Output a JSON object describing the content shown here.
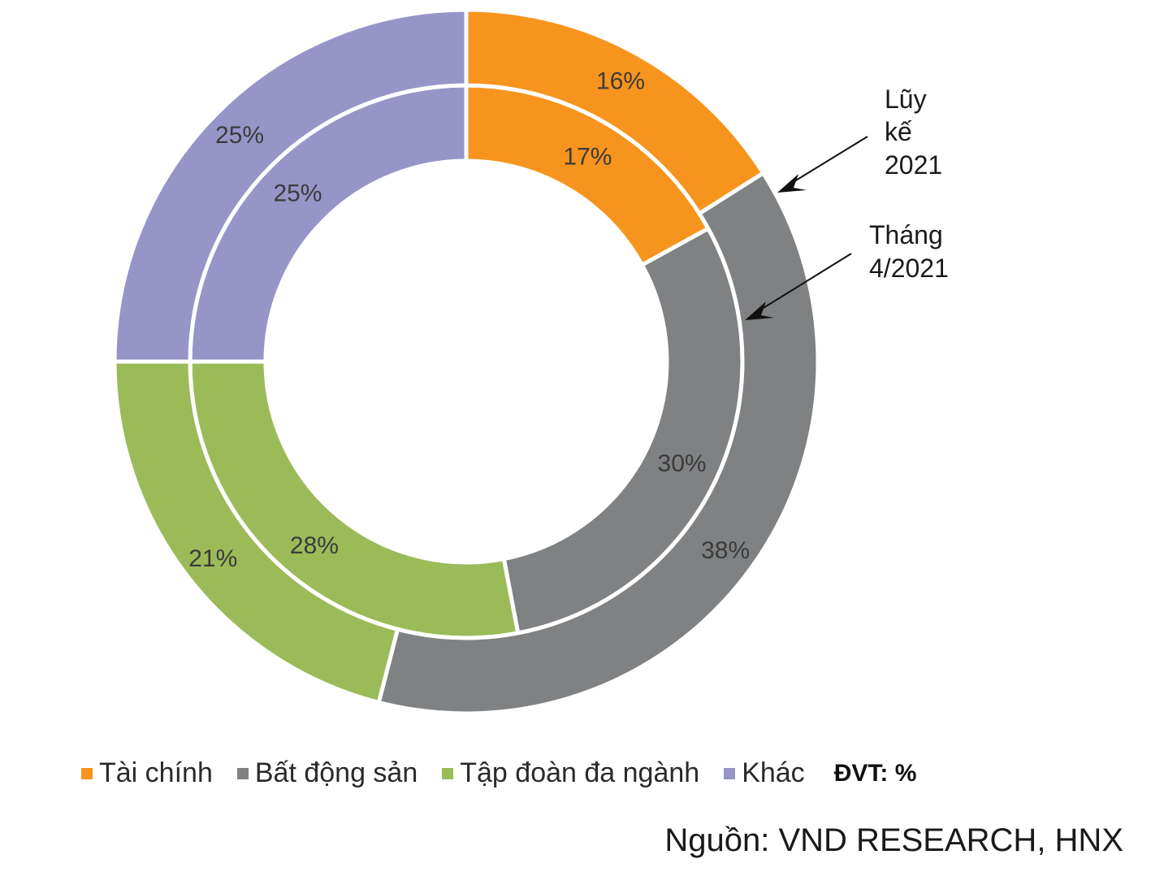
{
  "chart_data": {
    "type": "pie",
    "subtype": "donut",
    "categories": [
      "Tài chính",
      "Bất động sản",
      "Tập đoàn đa ngành",
      "Khác"
    ],
    "series": [
      {
        "name": "Tháng 4/2021",
        "ring": "inner",
        "values": [
          17,
          30,
          28,
          25
        ],
        "labels": [
          "17%",
          "30%",
          "28%",
          "25%"
        ]
      },
      {
        "name": "Lũy kế 2021",
        "ring": "outer",
        "values": [
          16,
          38,
          21,
          25
        ],
        "labels": [
          "16%",
          "38%",
          "21%",
          "25%"
        ]
      }
    ],
    "colors": [
      "#F7941D",
      "#7F8183",
      "#9BBB59",
      "#9795C8"
    ],
    "annotations": [
      {
        "lines": [
          "Lũy",
          "kế",
          "2021"
        ],
        "points_to": "outer"
      },
      {
        "lines": [
          "Tháng",
          "4/2021"
        ],
        "points_to": "inner"
      }
    ],
    "legend": [
      "Tài chính",
      "Bất động sản",
      "Tập đoàn đa ngành",
      "Khác"
    ],
    "unit_label": "ĐVT: %"
  },
  "source": "Nguồn: VND RESEARCH, HNX"
}
